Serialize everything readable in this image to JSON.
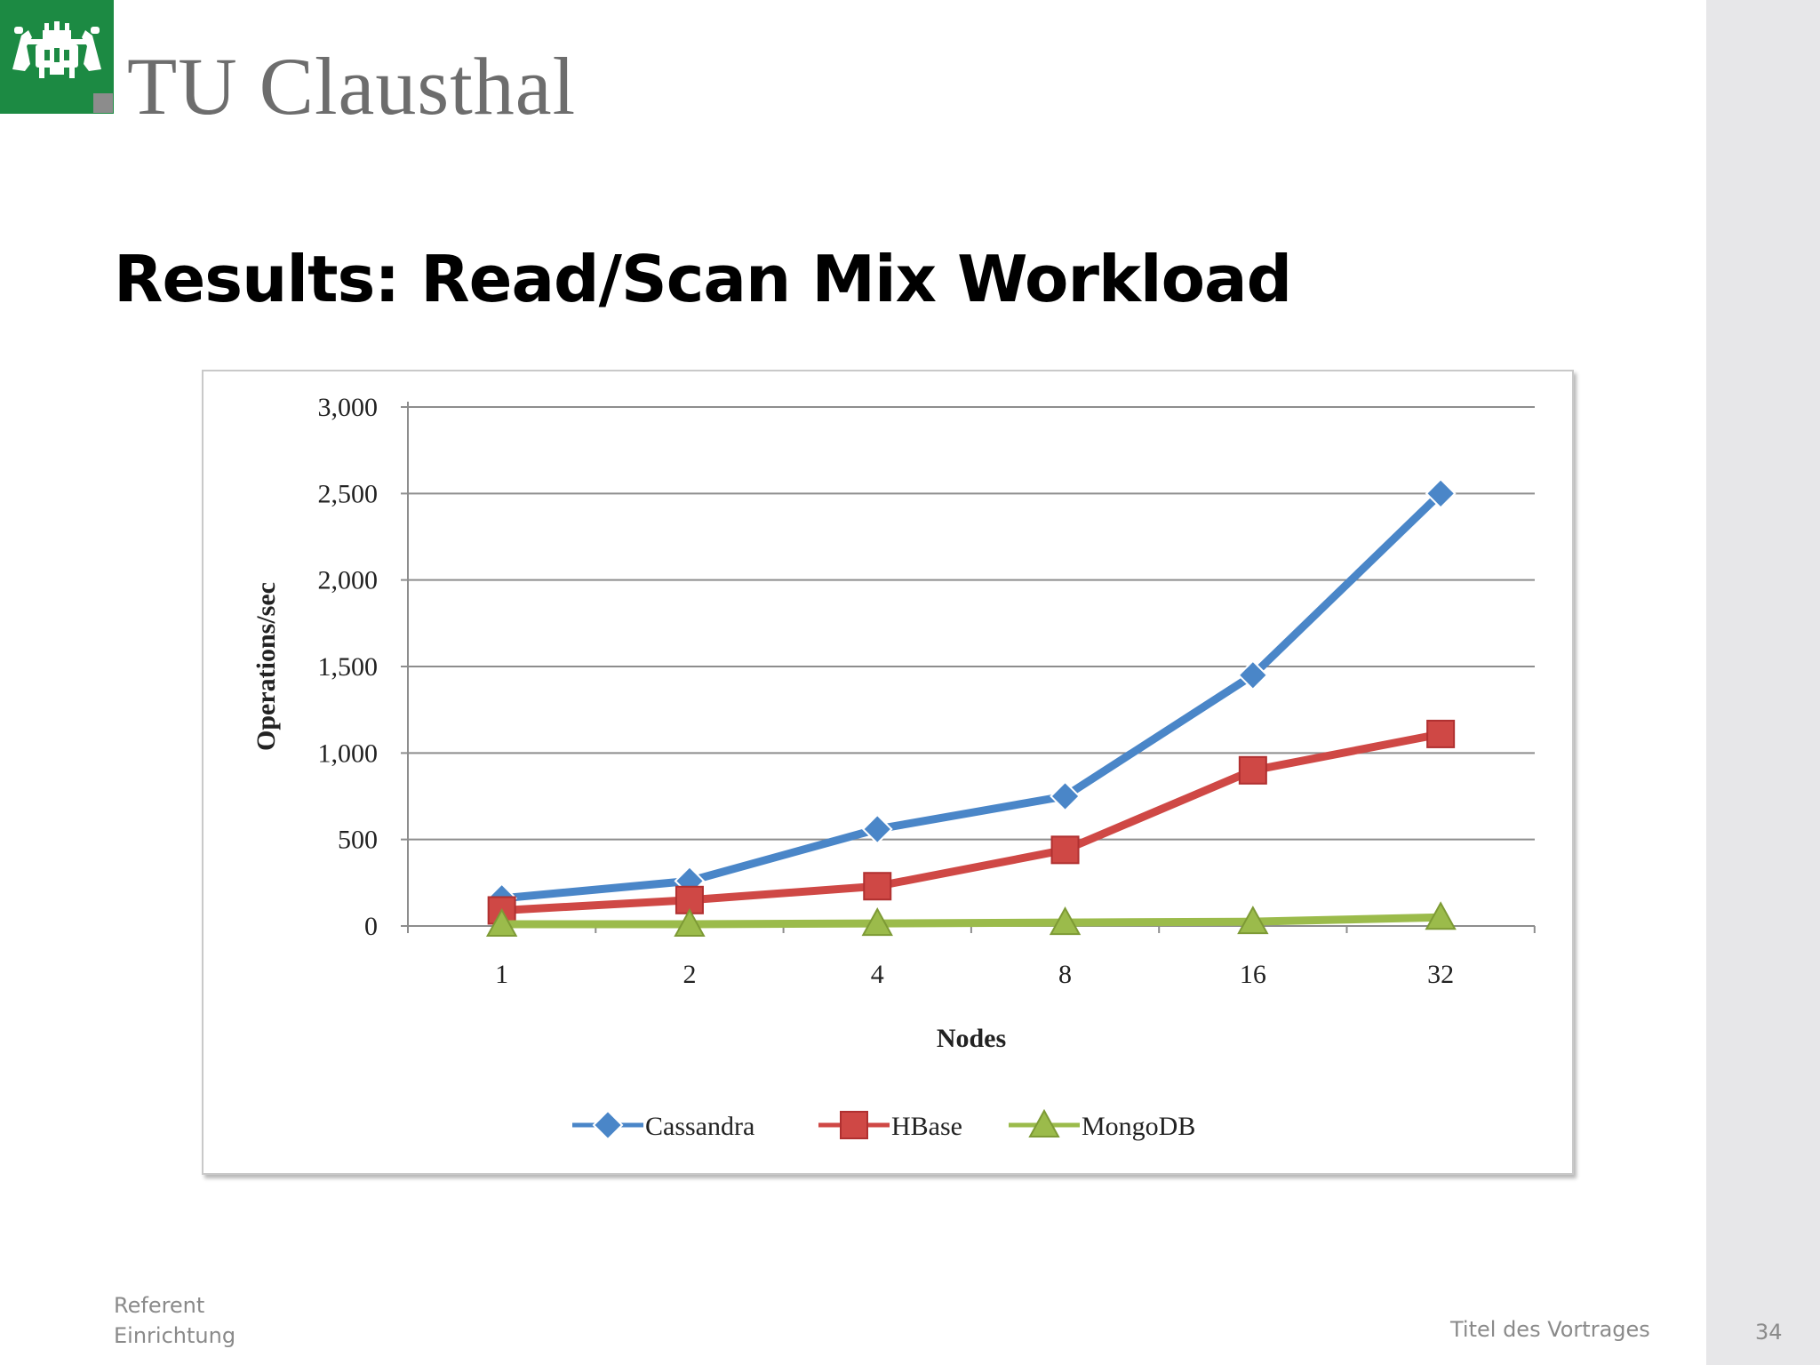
{
  "header": {
    "logo_text": "TU Clausthal"
  },
  "slide": {
    "title": "Results: Read/Scan Mix Workload",
    "page_number": "34"
  },
  "footer": {
    "referent": "Referent",
    "einrichtung": "Einrichtung",
    "talk_title": "Titel des Vortrages"
  },
  "colors": {
    "logo_green": "#1c8a43",
    "cassandra": "#4a86c8",
    "hbase": "#cf4845",
    "mongodb": "#9bbb4b"
  },
  "chart_data": {
    "type": "line",
    "title": "",
    "xlabel": "Nodes",
    "ylabel": "Operations/sec",
    "categories": [
      "1",
      "2",
      "4",
      "8",
      "16",
      "32"
    ],
    "ylim": [
      0,
      3000
    ],
    "yticks": [
      0,
      500,
      1000,
      1500,
      2000,
      2500,
      3000
    ],
    "ytick_labels": [
      "0",
      "500",
      "1,000",
      "1,500",
      "2,000",
      "2,500",
      "3,000"
    ],
    "grid": true,
    "legend_position": "bottom",
    "series": [
      {
        "name": "Cassandra",
        "marker": "diamond",
        "color": "#4a86c8",
        "values": [
          160,
          260,
          560,
          750,
          1450,
          2500
        ]
      },
      {
        "name": "HBase",
        "marker": "square",
        "color": "#cf4845",
        "values": [
          90,
          150,
          230,
          440,
          900,
          1110
        ]
      },
      {
        "name": "MongoDB",
        "marker": "triangle",
        "color": "#9bbb4b",
        "values": [
          10,
          10,
          15,
          20,
          25,
          50
        ]
      }
    ]
  }
}
